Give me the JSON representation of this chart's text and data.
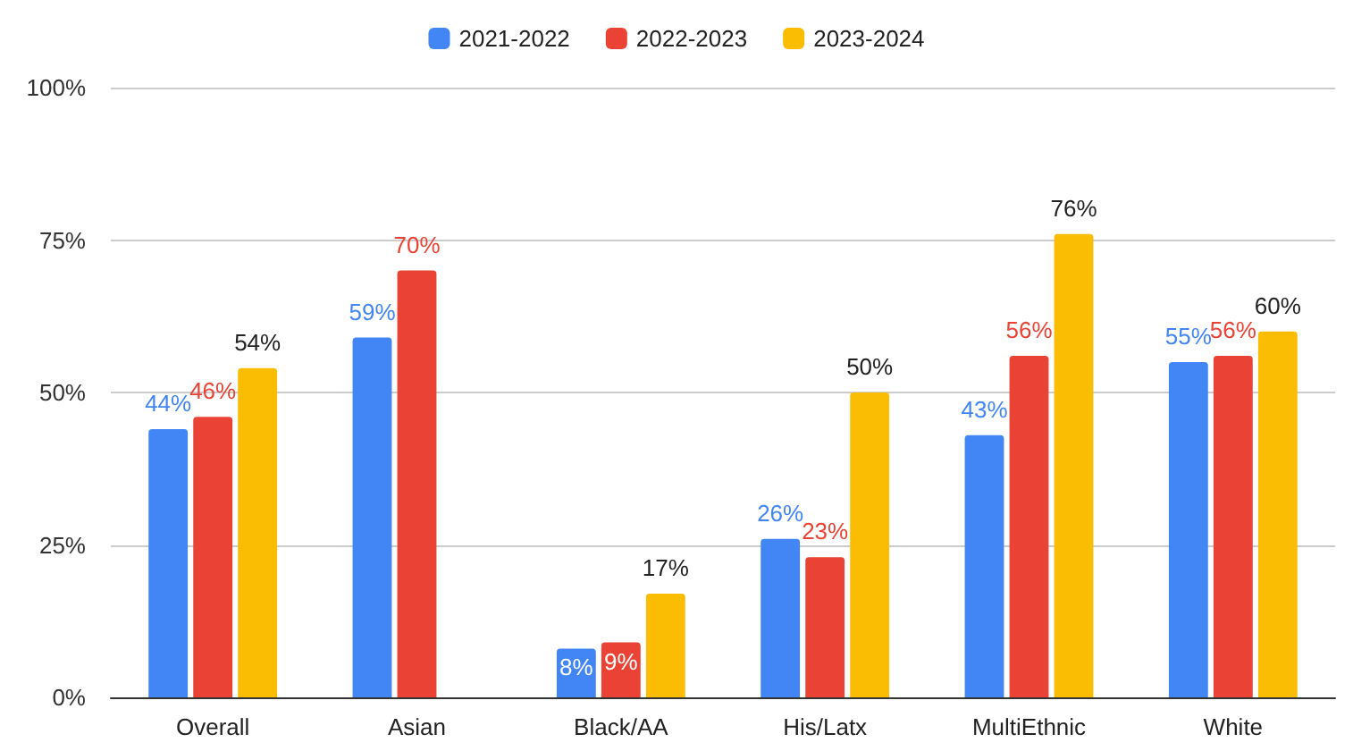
{
  "chart_data": {
    "type": "bar",
    "categories": [
      "Overall",
      "Asian",
      "Black/AA",
      "His/Latx",
      "MultiEthnic",
      "White"
    ],
    "series": [
      {
        "name": "2021-2022",
        "color": "#4285f4",
        "values": [
          44,
          59,
          8,
          26,
          43,
          55
        ],
        "value_labels": [
          "44%",
          "59%",
          "8%",
          "26%",
          "43%",
          "55%"
        ]
      },
      {
        "name": "2022-2023",
        "color": "#ea4335",
        "values": [
          46,
          70,
          9,
          23,
          56,
          56
        ],
        "value_labels": [
          "46%",
          "70%",
          "9%",
          "23%",
          "56%",
          "56%"
        ]
      },
      {
        "name": "2023-2024",
        "color": "#fbbc04",
        "values": [
          54,
          null,
          17,
          50,
          76,
          60
        ],
        "value_labels": [
          "54%",
          null,
          "17%",
          "50%",
          "76%",
          "60%"
        ]
      }
    ],
    "ylim": [
      0,
      100
    ],
    "yticks": [
      {
        "value": 0,
        "label": "0%"
      },
      {
        "value": 25,
        "label": "25%"
      },
      {
        "value": 50,
        "label": "50%"
      },
      {
        "value": 75,
        "label": "75%"
      },
      {
        "value": 100,
        "label": "100%"
      }
    ],
    "grid": "y",
    "legend": "top"
  }
}
